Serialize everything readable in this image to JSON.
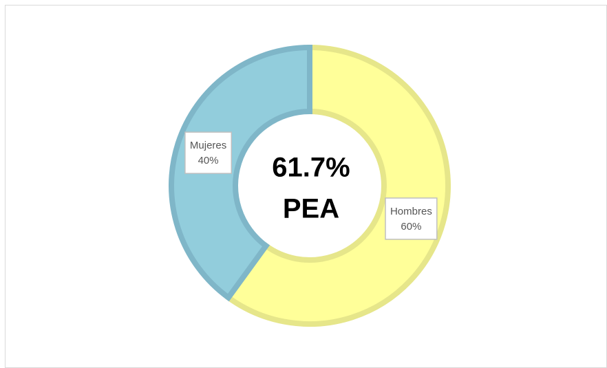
{
  "chart_data": {
    "type": "donut",
    "categories": [
      "Hombres",
      "Mujeres"
    ],
    "values": [
      60,
      40
    ],
    "value_labels": [
      "60%",
      "40%"
    ],
    "colors": [
      "#ffff99",
      "#92cddc"
    ],
    "edge_colors": [
      "#e6e68a",
      "#7fb6c8"
    ],
    "annotations": [
      "61.7%",
      "PEA"
    ]
  }
}
